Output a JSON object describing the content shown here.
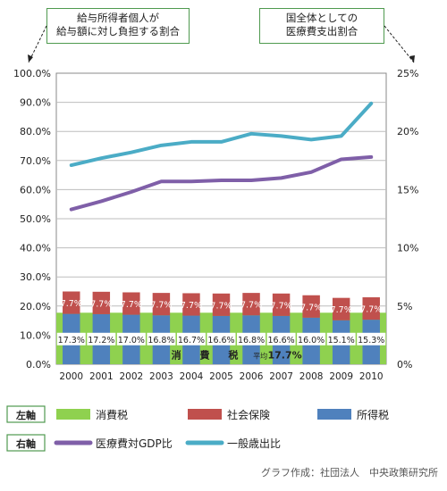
{
  "callouts": {
    "left_axis_note": "給与所得者個人が\n給与額に対し負担する割合",
    "right_axis_note": "国全体としての\n医療費支出割合"
  },
  "legend": {
    "left_axis_label": "左軸",
    "right_axis_label": "右軸",
    "items": [
      {
        "label": "消費税",
        "color": "#8fd14f",
        "kind": "box"
      },
      {
        "label": "社会保険",
        "color": "#c0504d",
        "kind": "box"
      },
      {
        "label": "所得税",
        "color": "#4f81bd",
        "kind": "box"
      },
      {
        "label": "医療費対GDP比",
        "color": "#7f5fa8",
        "kind": "line"
      },
      {
        "label": "一般歳出比",
        "color": "#4bacc6",
        "kind": "line"
      }
    ]
  },
  "credit": "グラフ作成：社団法人　中央政策研究所",
  "chart_data": {
    "type": "bar",
    "x": [
      "2000",
      "2001",
      "2002",
      "2003",
      "2004",
      "2005",
      "2006",
      "2007",
      "2008",
      "2009",
      "2010"
    ],
    "y_left_ticks": [
      "0.0%",
      "10.0%",
      "20.0%",
      "30.0%",
      "40.0%",
      "50.0%",
      "60.0%",
      "70.0%",
      "80.0%",
      "90.0%",
      "100.0%"
    ],
    "y_right_ticks": [
      "0%",
      "5%",
      "10%",
      "15%",
      "20%",
      "25%"
    ],
    "ylim_left": [
      0,
      100
    ],
    "ylim_right": [
      0,
      25
    ],
    "stack_left": [
      {
        "name": "所得税",
        "values": [
          17.3,
          17.2,
          17.0,
          16.8,
          16.7,
          16.6,
          16.8,
          16.6,
          16.0,
          15.1,
          15.3
        ],
        "labels": [
          "17.3%",
          "17.2%",
          "17.0%",
          "16.8%",
          "16.7%",
          "16.6%",
          "16.8%",
          "16.6%",
          "16.0%",
          "15.1%",
          "15.3%"
        ]
      },
      {
        "name": "社会保険",
        "values": [
          7.7,
          7.7,
          7.7,
          7.7,
          7.7,
          7.7,
          7.7,
          7.7,
          7.7,
          7.7,
          7.7
        ],
        "labels": [
          "7.7%",
          "7.7%",
          "7.7%",
          "7.7%",
          "7.7%",
          "7.7%",
          "7.7%",
          "7.7%",
          "7.7%",
          "7.7%",
          "7.7%"
        ]
      }
    ],
    "consumption_tax_band": {
      "name": "消費税",
      "text": [
        "消",
        "費",
        "税"
      ],
      "note": "平均",
      "avg_label": "17.7%"
    },
    "lines_right": [
      {
        "name": "医療費対GDP比",
        "color": "#7f5fa8",
        "values": [
          13.3,
          14.0,
          14.8,
          15.7,
          15.7,
          15.8,
          15.8,
          16.0,
          16.5,
          17.6,
          17.8
        ]
      },
      {
        "name": "一般歳出比",
        "color": "#4bacc6",
        "values": [
          17.1,
          17.7,
          18.2,
          18.8,
          19.1,
          19.1,
          19.8,
          19.6,
          19.3,
          19.6,
          22.4
        ]
      }
    ],
    "grid": true
  }
}
